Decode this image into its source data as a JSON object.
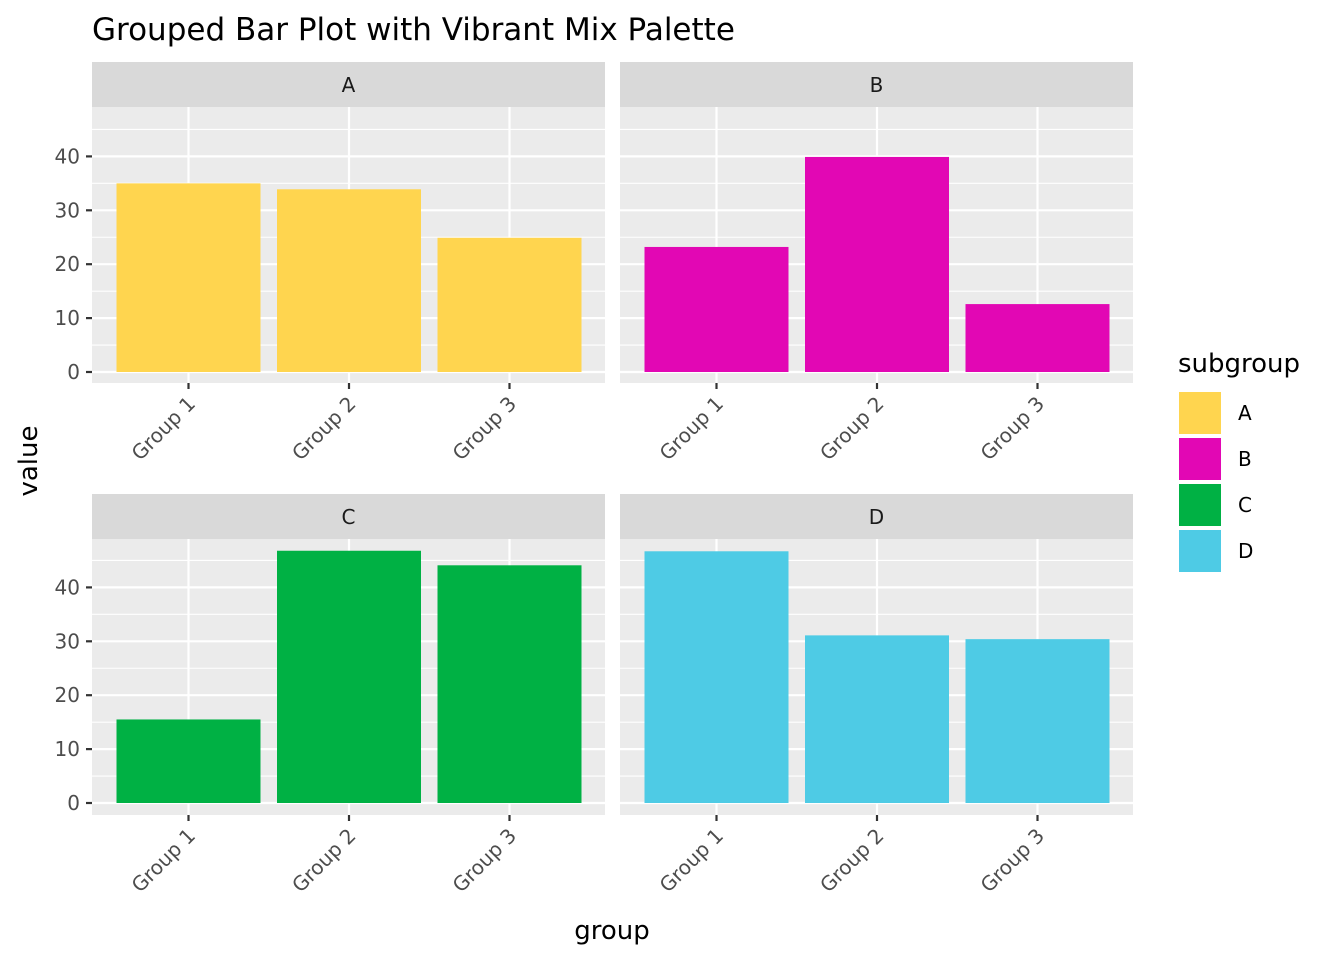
{
  "chart_data": {
    "type": "bar",
    "title": "Grouped Bar Plot with Vibrant Mix Palette",
    "xlabel": "group",
    "ylabel": "value",
    "categories": [
      "Group 1",
      "Group 2",
      "Group 3"
    ],
    "ylim": [
      0,
      50
    ],
    "y_ticks": [
      0,
      10,
      20,
      30,
      40
    ],
    "y_tick_labels": [
      "0",
      "10",
      "20",
      "30",
      "40"
    ],
    "grid": true,
    "facets": [
      {
        "name": "A",
        "color": "#FFD54F",
        "values": [
          35.0,
          33.9,
          24.9
        ]
      },
      {
        "name": "B",
        "color": "#E207B4",
        "values": [
          23.2,
          39.9,
          12.6
        ]
      },
      {
        "name": "C",
        "color": "#00B144",
        "values": [
          15.5,
          46.8,
          44.1
        ]
      },
      {
        "name": "D",
        "color": "#4ECBE5",
        "values": [
          46.7,
          31.1,
          30.4
        ]
      }
    ],
    "legend": {
      "title": "subgroup",
      "position": "right",
      "items": [
        {
          "label": "A",
          "color": "#FFD54F"
        },
        {
          "label": "B",
          "color": "#E207B4"
        },
        {
          "label": "C",
          "color": "#00B144"
        },
        {
          "label": "D",
          "color": "#4ECBE5"
        }
      ]
    }
  }
}
